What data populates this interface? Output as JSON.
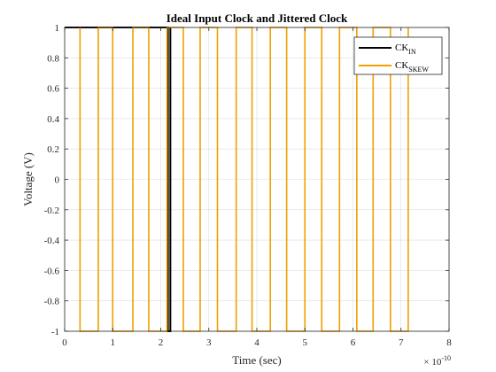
{
  "chart_data": {
    "type": "line",
    "title": "Ideal Input Clock and Jittered Clock",
    "xlabel": "Time (sec)",
    "ylabel": "Voltage (V)",
    "x_multiplier": {
      "base": "× 10",
      "exponent": "-10"
    },
    "xlim": [
      0,
      8
    ],
    "ylim": [
      -1,
      1
    ],
    "xticks": [
      "0",
      "1",
      "2",
      "3",
      "4",
      "5",
      "6",
      "7",
      "8"
    ],
    "yticks": [
      "-1",
      "-0.8",
      "-0.6",
      "-0.4",
      "-0.2",
      "0",
      "0.2",
      "0.4",
      "0.6",
      "0.8",
      "1"
    ],
    "grid": true,
    "legend_position": "top-right",
    "series": [
      {
        "name": "CK",
        "subscript": "IN",
        "color": "#000000",
        "x": [
          0,
          2.15,
          2.15,
          2.2,
          2.2
        ],
        "y": [
          1,
          1,
          -1,
          -1,
          1
        ]
      },
      {
        "name": "CK",
        "subscript": "SKEW",
        "color": "#F0A000",
        "x": [
          0.32,
          0.32,
          0.7,
          0.7,
          1.0,
          1.0,
          1.42,
          1.42,
          1.75,
          1.75,
          2.13,
          2.13,
          2.47,
          2.47,
          2.82,
          2.82,
          3.18,
          3.18,
          3.57,
          3.57,
          3.9,
          3.9,
          4.28,
          4.28,
          4.62,
          4.62,
          5.0,
          5.0,
          5.35,
          5.35,
          5.72,
          5.72,
          6.08,
          6.08,
          6.42,
          6.42,
          6.78,
          6.78,
          7.15,
          7.15
        ],
        "y": [
          1,
          -1,
          -1,
          1,
          1,
          -1,
          -1,
          1,
          1,
          -1,
          -1,
          1,
          1,
          -1,
          -1,
          1,
          1,
          -1,
          -1,
          1,
          1,
          -1,
          -1,
          1,
          1,
          -1,
          -1,
          1,
          1,
          -1,
          -1,
          1,
          1,
          -1,
          -1,
          1,
          1,
          -1,
          -1,
          1
        ]
      }
    ]
  }
}
